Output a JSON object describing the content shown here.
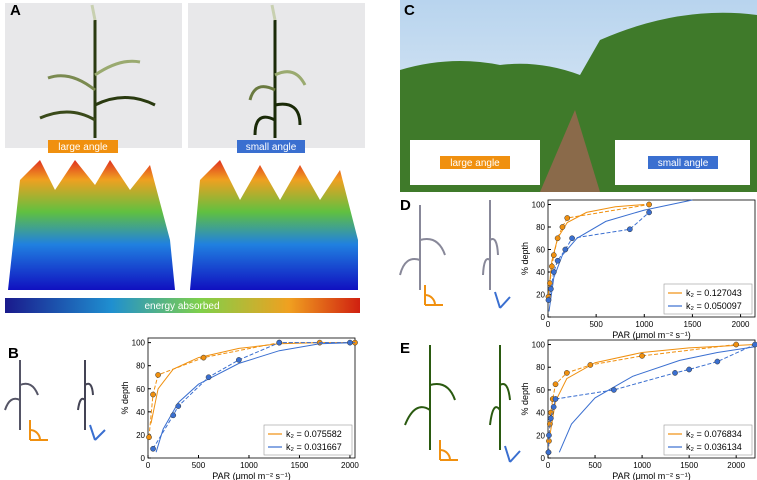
{
  "panels": {
    "a": {
      "label": "A",
      "tags": [
        "large angle",
        "small angle"
      ],
      "colorbar_label": "energy absorbed"
    },
    "b": {
      "label": "B"
    },
    "c": {
      "label": "C",
      "tags": [
        "large angle",
        "small angle"
      ]
    },
    "d": {
      "label": "D"
    },
    "e": {
      "label": "E"
    }
  },
  "chart_data": [
    {
      "type": "scatter",
      "xlabel": "PAR (μmol m⁻² s⁻¹)",
      "ylabel": "% depth",
      "xlim": [
        0,
        2050
      ],
      "ylim": [
        0,
        104
      ],
      "xticks": [
        0,
        500,
        1000,
        1500,
        2000
      ],
      "yticks": [
        0,
        20,
        40,
        60,
        80,
        100
      ],
      "legend": "lower right",
      "series": [
        {
          "name": "k₂ = 0.075582",
          "color": "#f0900f",
          "x": [
            10,
            50,
            100,
            550,
            1300,
            1700,
            2050
          ],
          "values": [
            18,
            55,
            72,
            87,
            100,
            100,
            100
          ],
          "fit_x": [
            30,
            100,
            250,
            500,
            900,
            1300,
            1700,
            2050
          ],
          "fit_values": [
            30,
            60,
            77,
            87,
            95,
            99,
            100,
            100
          ]
        },
        {
          "name": "k₂ = 0.031667",
          "color": "#3a6fd0",
          "x": [
            50,
            250,
            300,
            600,
            900,
            1300,
            2000
          ],
          "values": [
            8,
            37,
            45,
            70,
            85,
            100,
            100
          ],
          "fit_x": [
            80,
            150,
            300,
            500,
            900,
            1300,
            1700,
            2050
          ],
          "fit_values": [
            5,
            25,
            48,
            64,
            82,
            93,
            99,
            100
          ]
        }
      ]
    },
    {
      "type": "scatter",
      "xlabel": "PAR (μmol m⁻² s⁻¹)",
      "ylabel": "% depth",
      "xlim": [
        0,
        2150
      ],
      "ylim": [
        0,
        104
      ],
      "xticks": [
        0,
        500,
        1000,
        1500,
        2000
      ],
      "yticks": [
        0,
        20,
        40,
        60,
        80,
        100
      ],
      "legend": "lower right",
      "series": [
        {
          "name": "k₂ = 0.127043",
          "color": "#f0900f",
          "x": [
            5,
            20,
            40,
            60,
            100,
            150,
            200,
            1050
          ],
          "values": [
            18,
            30,
            45,
            55,
            70,
            80,
            88,
            100
          ],
          "fit_x": [
            5,
            40,
            100,
            200,
            400,
            700,
            1000
          ],
          "fit_values": [
            20,
            50,
            70,
            84,
            93,
            98,
            100
          ]
        },
        {
          "name": "k₂ = 0.050097",
          "color": "#3a6fd0",
          "x": [
            5,
            30,
            60,
            100,
            180,
            250,
            850,
            1050
          ],
          "values": [
            15,
            25,
            40,
            50,
            60,
            70,
            78,
            93
          ],
          "fit_x": [
            10,
            60,
            150,
            300,
            600,
            1000,
            1500
          ],
          "fit_values": [
            5,
            35,
            55,
            70,
            85,
            95,
            104
          ]
        }
      ]
    },
    {
      "type": "scatter",
      "xlabel": "PAR (μmol m⁻² s⁻¹)",
      "ylabel": "% depth",
      "xlim": [
        0,
        2200
      ],
      "ylim": [
        0,
        104
      ],
      "xticks": [
        0,
        500,
        1000,
        1500,
        2000
      ],
      "yticks": [
        0,
        20,
        40,
        60,
        80,
        100
      ],
      "legend": "lower right",
      "series": [
        {
          "name": "k₂ = 0.076834",
          "color": "#f0900f",
          "x": [
            5,
            10,
            20,
            30,
            50,
            80,
            200,
            450,
            1000,
            2000
          ],
          "values": [
            5,
            15,
            30,
            40,
            52,
            65,
            75,
            82,
            90,
            100
          ],
          "fit_x": [
            20,
            80,
            200,
            500,
            1000,
            1500,
            2200
          ],
          "fit_values": [
            20,
            50,
            70,
            84,
            93,
            97,
            100
          ]
        },
        {
          "name": "k₂ = 0.036134",
          "color": "#3a6fd0",
          "x": [
            5,
            10,
            30,
            60,
            80,
            700,
            1350,
            1500,
            1800,
            2200
          ],
          "values": [
            5,
            20,
            35,
            45,
            52,
            60,
            75,
            78,
            85,
            100
          ],
          "fit_x": [
            120,
            250,
            500,
            900,
            1400,
            1800,
            2200
          ],
          "fit_values": [
            5,
            30,
            53,
            72,
            86,
            93,
            98
          ]
        }
      ]
    }
  ]
}
